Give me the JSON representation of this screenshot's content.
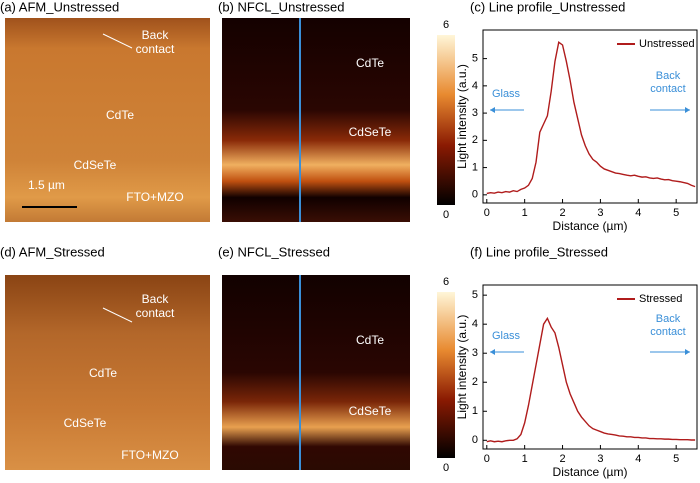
{
  "panels": {
    "a": {
      "title": "(a) AFM_Unstressed",
      "labels": [
        "Back contact",
        "CdTe",
        "CdSeTe",
        "FTO+MZO"
      ],
      "scale_bar": "1.5 µm"
    },
    "b": {
      "title": "(b) NFCL_Unstressed",
      "labels": [
        "CdTe",
        "CdSeTe"
      ],
      "colorbar_ticks": [
        0,
        6
      ]
    },
    "d": {
      "title": "(d) AFM_Stressed",
      "labels": [
        "Back contact",
        "CdTe",
        "CdSeTe",
        "FTO+MZO"
      ]
    },
    "e": {
      "title": "(e) NFCL_Stressed",
      "labels": [
        "CdTe",
        "CdSeTe"
      ],
      "colorbar_ticks": [
        0,
        6
      ]
    }
  },
  "chart_data": [
    {
      "type": "line",
      "title": "(c) Line profile_Unstressed",
      "x_label": "Distance (µm)",
      "y_label": "Light intensity (a.u.)",
      "annotations": [
        "Glass",
        "Back contact"
      ],
      "x": [
        0,
        0.1,
        0.2,
        0.3,
        0.4,
        0.5,
        0.6,
        0.7,
        0.8,
        0.9,
        1.0,
        1.1,
        1.2,
        1.3,
        1.4,
        1.5,
        1.6,
        1.7,
        1.8,
        1.9,
        2.0,
        2.1,
        2.2,
        2.3,
        2.4,
        2.5,
        2.6,
        2.7,
        2.8,
        2.9,
        3.0,
        3.1,
        3.2,
        3.3,
        3.4,
        3.5,
        3.6,
        3.7,
        3.8,
        3.9,
        4.0,
        4.1,
        4.2,
        4.3,
        4.4,
        4.5,
        4.6,
        4.7,
        4.8,
        4.9,
        5.0,
        5.1,
        5.2,
        5.3,
        5.4,
        5.5
      ],
      "series": [
        {
          "name": "Unstressed",
          "color": "#b01c1c",
          "values": [
            0.05,
            0.08,
            0.06,
            0.1,
            0.08,
            0.12,
            0.1,
            0.15,
            0.12,
            0.2,
            0.25,
            0.35,
            0.6,
            1.2,
            2.3,
            2.6,
            2.9,
            3.8,
            4.9,
            5.6,
            5.5,
            4.9,
            4.2,
            3.4,
            2.8,
            2.2,
            1.8,
            1.5,
            1.3,
            1.2,
            1.05,
            0.95,
            0.9,
            0.85,
            0.8,
            0.78,
            0.75,
            0.72,
            0.7,
            0.72,
            0.68,
            0.65,
            0.66,
            0.62,
            0.6,
            0.62,
            0.58,
            0.55,
            0.56,
            0.52,
            0.5,
            0.48,
            0.45,
            0.42,
            0.35,
            0.3
          ]
        }
      ],
      "xlim": [
        -0.1,
        5.55
      ],
      "ylim": [
        -0.3,
        6.05
      ],
      "xticks": [
        0,
        1,
        2,
        3,
        4,
        5
      ],
      "yticks": [
        0,
        1,
        2,
        3,
        4,
        5
      ]
    },
    {
      "type": "line",
      "title": "(f) Line profile_Stressed",
      "x_label": "Distance (µm)",
      "y_label": "Light intensity (a.u.)",
      "annotations": [
        "Glass",
        "Back contact"
      ],
      "x": [
        0,
        0.1,
        0.2,
        0.3,
        0.4,
        0.5,
        0.6,
        0.7,
        0.8,
        0.9,
        1.0,
        1.1,
        1.2,
        1.3,
        1.4,
        1.5,
        1.6,
        1.7,
        1.8,
        1.9,
        2.0,
        2.1,
        2.2,
        2.3,
        2.4,
        2.5,
        2.6,
        2.7,
        2.8,
        2.9,
        3.0,
        3.1,
        3.2,
        3.3,
        3.4,
        3.5,
        3.6,
        3.7,
        3.8,
        3.9,
        4.0,
        4.1,
        4.2,
        4.3,
        4.4,
        4.5,
        4.6,
        4.7,
        4.8,
        4.9,
        5.0,
        5.1,
        5.2,
        5.3,
        5.4,
        5.5
      ],
      "series": [
        {
          "name": "Stressed",
          "color": "#b01c1c",
          "values": [
            -0.05,
            -0.02,
            -0.05,
            -0.03,
            -0.05,
            -0.02,
            0,
            0,
            0.05,
            0.2,
            0.6,
            1.2,
            1.9,
            2.6,
            3.3,
            4.0,
            4.2,
            3.9,
            3.7,
            3.2,
            2.6,
            2.0,
            1.6,
            1.3,
            1.0,
            0.8,
            0.65,
            0.5,
            0.4,
            0.35,
            0.3,
            0.25,
            0.22,
            0.2,
            0.18,
            0.15,
            0.14,
            0.12,
            0.12,
            0.1,
            0.1,
            0.08,
            0.08,
            0.06,
            0.06,
            0.05,
            0.05,
            0.04,
            0.04,
            0.03,
            0.03,
            0.02,
            0.02,
            0.02,
            0.01,
            0.01
          ]
        }
      ],
      "xlim": [
        -0.1,
        5.55
      ],
      "ylim": [
        -0.3,
        5.35
      ],
      "xticks": [
        0,
        1,
        2,
        3,
        4,
        5
      ],
      "yticks": [
        0,
        1,
        2,
        3,
        4,
        5
      ]
    }
  ]
}
